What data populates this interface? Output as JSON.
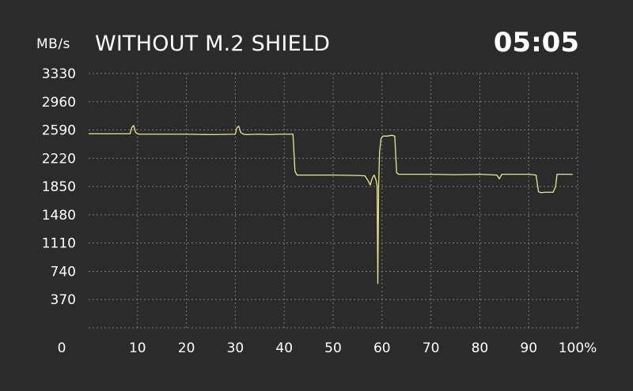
{
  "chart_data": {
    "type": "line",
    "title": "WITHOUT M.2 SHIELD",
    "timer": "05:05",
    "ylabel": "MB/s",
    "yticks": [
      370,
      740,
      1110,
      1480,
      1850,
      2220,
      2590,
      2960,
      3330
    ],
    "xticks": [
      0,
      10,
      20,
      30,
      40,
      50,
      60,
      70,
      80,
      90,
      100
    ],
    "xtick_labels": [
      "0",
      "10",
      "20",
      "30",
      "40",
      "50",
      "60",
      "70",
      "80",
      "90",
      "100%"
    ],
    "xlim": [
      0,
      100
    ],
    "ylim": [
      0,
      3330
    ],
    "grid": true,
    "line_color": "#e8e890",
    "series": [
      {
        "x": [
          0,
          8.5,
          8.8,
          9.2,
          9.6,
          10.0,
          10.4,
          15,
          20,
          25,
          30,
          30.3,
          30.7,
          31.1,
          31.5,
          32,
          35,
          37,
          39,
          41.8,
          42.2,
          42.6,
          45,
          50,
          55,
          56.5,
          57.2,
          57.6,
          58.0,
          58.4,
          58.8,
          59.0,
          59.15,
          59.3,
          59.5,
          59.8,
          60.2,
          61,
          62,
          62.6,
          63.0,
          63.4,
          65,
          70,
          75,
          80,
          83.5,
          84.0,
          84.5,
          90,
          91.5,
          92.0,
          92.5,
          93.5,
          95.0,
          95.5,
          95.8,
          97,
          99
        ],
        "y": [
          2540,
          2540,
          2620,
          2650,
          2560,
          2540,
          2535,
          2535,
          2535,
          2530,
          2535,
          2620,
          2640,
          2560,
          2540,
          2530,
          2535,
          2530,
          2535,
          2535,
          2050,
          2000,
          2000,
          2000,
          1995,
          1990,
          1920,
          1870,
          1960,
          2000,
          1930,
          1860,
          580,
          1850,
          2300,
          2480,
          2510,
          2510,
          2520,
          2510,
          2030,
          2010,
          2010,
          2010,
          2005,
          2010,
          2000,
          1950,
          2010,
          2010,
          2000,
          1780,
          1770,
          1775,
          1775,
          1850,
          2010,
          2010,
          2010
        ]
      }
    ]
  }
}
